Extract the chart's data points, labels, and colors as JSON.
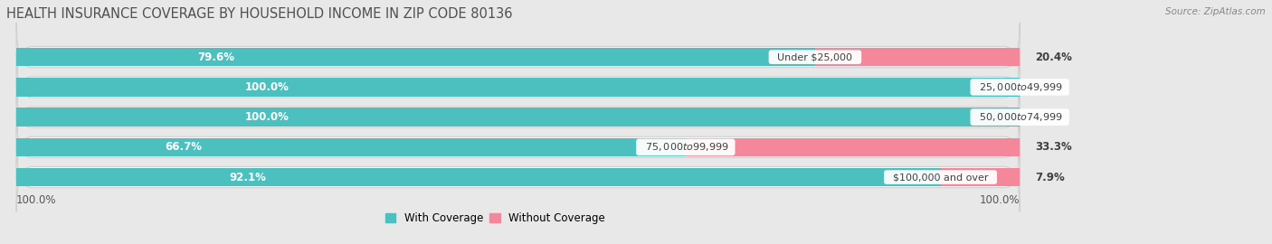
{
  "title": "HEALTH INSURANCE COVERAGE BY HOUSEHOLD INCOME IN ZIP CODE 80136",
  "source": "Source: ZipAtlas.com",
  "categories": [
    "Under $25,000",
    "$25,000 to $49,999",
    "$50,000 to $74,999",
    "$75,000 to $99,999",
    "$100,000 and over"
  ],
  "with_coverage": [
    79.6,
    100.0,
    100.0,
    66.7,
    92.1
  ],
  "without_coverage": [
    20.4,
    0.0,
    0.0,
    33.3,
    7.9
  ],
  "color_with": "#4CBFBF",
  "color_without": "#F4879A",
  "bg_color": "#e8e8e8",
  "bar_bg": "#f5f5f5",
  "bar_height": 0.62,
  "legend_labels": [
    "With Coverage",
    "Without Coverage"
  ],
  "title_fontsize": 10.5,
  "label_fontsize": 8.5,
  "tick_fontsize": 8.5,
  "cat_fontsize": 8.0,
  "source_fontsize": 7.5
}
